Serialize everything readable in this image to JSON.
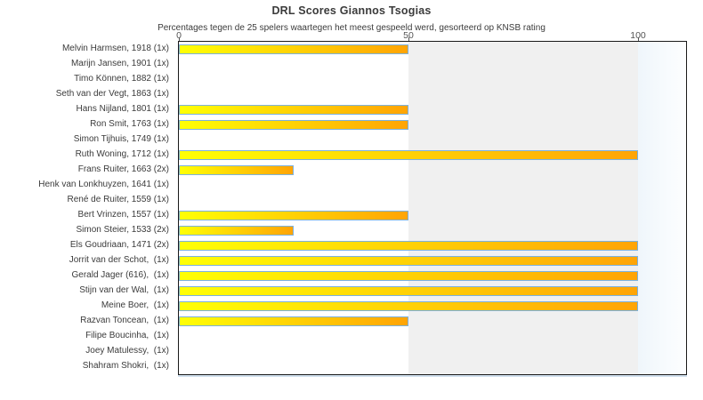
{
  "chart_data": {
    "type": "bar",
    "orientation": "horizontal",
    "title": "DRL Scores Giannos Tsogias",
    "subtitle": "Percentages tegen de 25 spelers waartegen het meest gespeeld werd, gesorteerd op KNSB rating",
    "xlabel": "",
    "ylabel": "",
    "xlim": [
      0,
      110
    ],
    "x_ticks": [
      "0",
      "50",
      "100"
    ],
    "x_tick_values": [
      0,
      50,
      100
    ],
    "legend": "none",
    "grid": "band shading between ticks (white 0-50, gray 50-100, pale blue over 100)",
    "categories": [
      "Melvin Harmsen, 1918 (1x)",
      "Marijn Jansen, 1901 (1x)",
      "Timo Können, 1882 (1x)",
      "Seth van der Vegt, 1863 (1x)",
      "Hans Nijland, 1801 (1x)",
      "Ron Smit, 1763 (1x)",
      "Simon Tijhuis, 1749 (1x)",
      "Ruth Woning, 1712 (1x)",
      "Frans Ruiter, 1663 (2x)",
      "Henk van Lonkhuyzen, 1641 (1x)",
      "René de Ruiter, 1559 (1x)",
      "Bert Vrinzen, 1557 (1x)",
      "Simon Steier, 1533 (2x)",
      "Els Goudriaan, 1471 (2x)",
      "Jorrit van der Schot,  (1x)",
      "Gerald Jager (616),  (1x)",
      "Stijn van der Wal,  (1x)",
      "Meine Boer,  (1x)",
      "Razvan Toncean,  (1x)",
      "Filipe Boucinha,  (1x)",
      "Joey Matulessy,  (1x)",
      "Shahram Shokri,  (1x)"
    ],
    "values": [
      50,
      0,
      0,
      0,
      50,
      50,
      0,
      100,
      25,
      0,
      0,
      50,
      25,
      100,
      100,
      100,
      100,
      100,
      50,
      0,
      0,
      0
    ],
    "colors": {
      "bar_gradient_start": "#ffff05",
      "bar_gradient_end": "#ffa405",
      "bar_border": "#7cb1dd",
      "band_0_50": "#ffffff",
      "band_50_100": "#f0f0f0",
      "band_over_100": "#eff6fb",
      "plot_border": "#1a1a1a",
      "text": "#3b3b3b",
      "tick_text": "#555555"
    }
  }
}
